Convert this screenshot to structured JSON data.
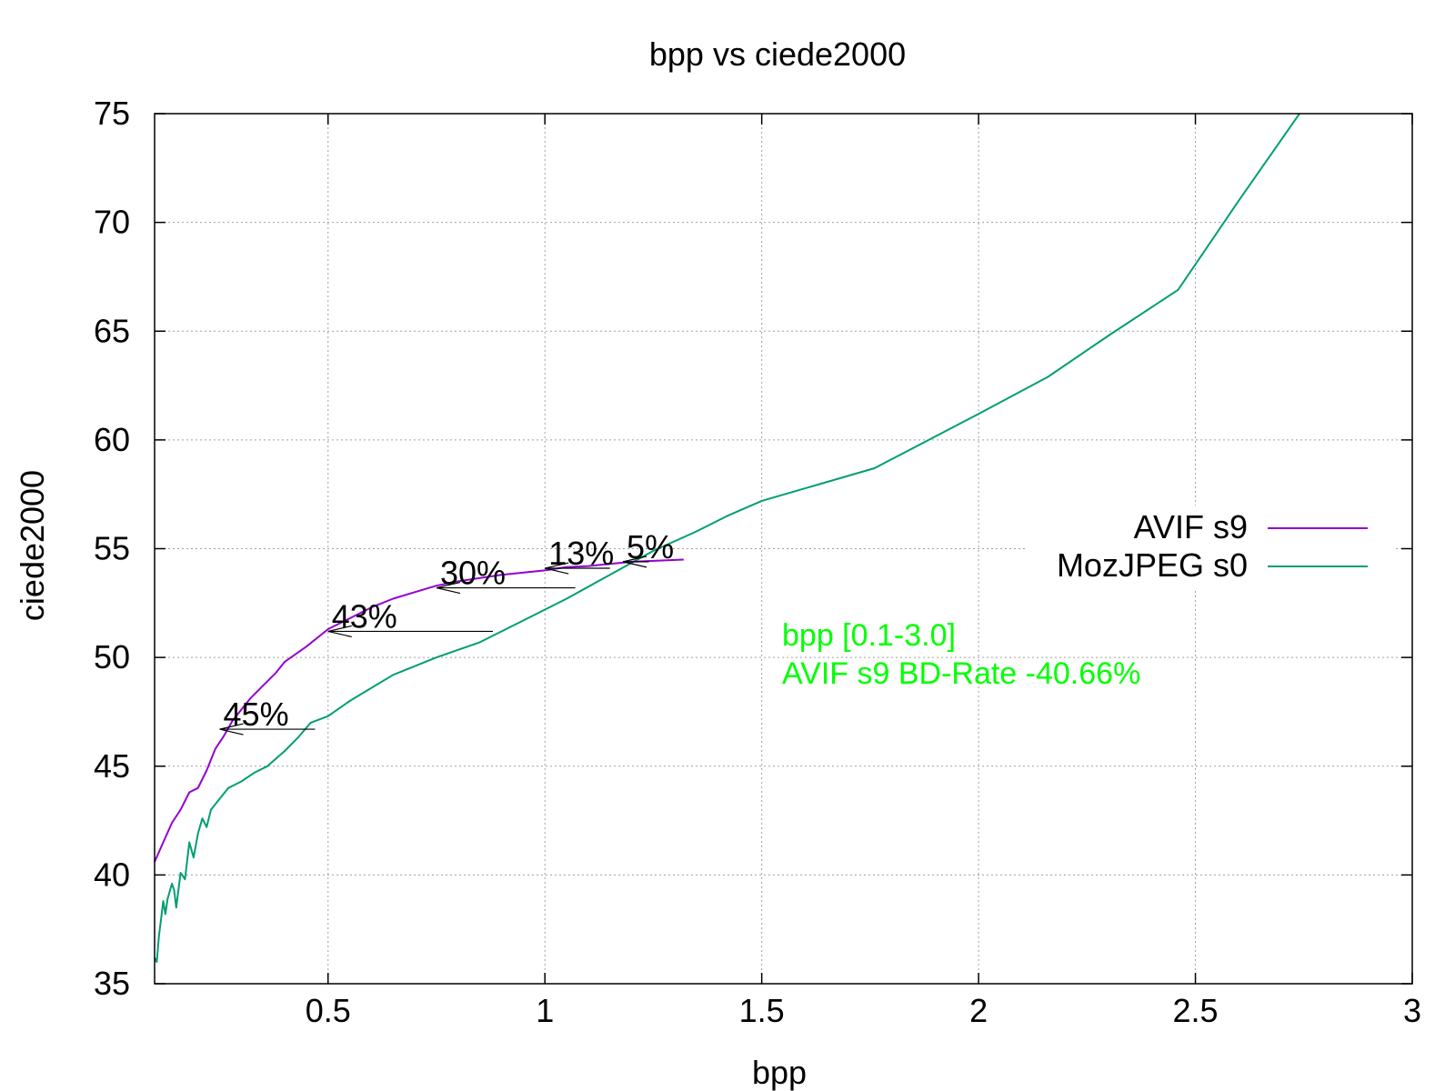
{
  "chart_data": {
    "type": "line",
    "title": "bpp vs ciede2000",
    "xlabel": "bpp",
    "ylabel": "ciede2000",
    "xlim": [
      0.1,
      3.0
    ],
    "ylim": [
      35,
      75
    ],
    "xticks": [
      0.5,
      1,
      1.5,
      2,
      2.5,
      3
    ],
    "xtick_labels": [
      "0.5",
      "1",
      "1.5",
      "2",
      "2.5",
      "3"
    ],
    "yticks": [
      35,
      40,
      45,
      50,
      55,
      60,
      65,
      70,
      75
    ],
    "ytick_labels": [
      "35",
      "40",
      "45",
      "50",
      "55",
      "60",
      "65",
      "70",
      "75"
    ],
    "grid": true,
    "legend_position": "right",
    "series": [
      {
        "name": "AVIF s9",
        "color": "#9400d3",
        "points": [
          [
            0.1,
            40.6
          ],
          [
            0.12,
            41.5
          ],
          [
            0.14,
            42.4
          ],
          [
            0.16,
            43.0
          ],
          [
            0.18,
            43.8
          ],
          [
            0.2,
            44.0
          ],
          [
            0.22,
            44.8
          ],
          [
            0.24,
            45.8
          ],
          [
            0.26,
            46.4
          ],
          [
            0.28,
            47.1
          ],
          [
            0.3,
            47.6
          ],
          [
            0.32,
            48.1
          ],
          [
            0.35,
            48.7
          ],
          [
            0.38,
            49.3
          ],
          [
            0.4,
            49.8
          ],
          [
            0.45,
            50.5
          ],
          [
            0.5,
            51.3
          ],
          [
            0.55,
            51.8
          ],
          [
            0.6,
            52.3
          ],
          [
            0.65,
            52.7
          ],
          [
            0.7,
            53.0
          ],
          [
            0.75,
            53.3
          ],
          [
            0.8,
            53.5
          ],
          [
            0.9,
            53.8
          ],
          [
            1.0,
            54.0
          ],
          [
            1.05,
            54.15
          ],
          [
            1.1,
            54.2
          ],
          [
            1.2,
            54.4
          ],
          [
            1.32,
            54.5
          ]
        ]
      },
      {
        "name": "MozJPEG s0",
        "color": "#009e73",
        "points": [
          [
            0.1,
            36.2
          ],
          [
            0.105,
            36.0
          ],
          [
            0.11,
            37.2
          ],
          [
            0.115,
            38.0
          ],
          [
            0.12,
            38.8
          ],
          [
            0.125,
            38.2
          ],
          [
            0.13,
            38.9
          ],
          [
            0.14,
            39.6
          ],
          [
            0.145,
            39.3
          ],
          [
            0.15,
            38.5
          ],
          [
            0.16,
            40.1
          ],
          [
            0.17,
            39.8
          ],
          [
            0.18,
            41.5
          ],
          [
            0.19,
            40.8
          ],
          [
            0.2,
            41.9
          ],
          [
            0.21,
            42.6
          ],
          [
            0.22,
            42.2
          ],
          [
            0.23,
            43.0
          ],
          [
            0.25,
            43.5
          ],
          [
            0.27,
            44.0
          ],
          [
            0.3,
            44.3
          ],
          [
            0.33,
            44.7
          ],
          [
            0.36,
            45.0
          ],
          [
            0.4,
            45.7
          ],
          [
            0.43,
            46.3
          ],
          [
            0.46,
            47.0
          ],
          [
            0.5,
            47.3
          ],
          [
            0.55,
            48.0
          ],
          [
            0.6,
            48.6
          ],
          [
            0.65,
            49.2
          ],
          [
            0.75,
            50.0
          ],
          [
            0.85,
            50.7
          ],
          [
            0.95,
            51.7
          ],
          [
            1.05,
            52.7
          ],
          [
            1.15,
            53.8
          ],
          [
            1.25,
            54.9
          ],
          [
            1.35,
            55.8
          ],
          [
            1.42,
            56.5
          ],
          [
            1.5,
            57.2
          ],
          [
            1.76,
            58.7
          ],
          [
            2.0,
            61.2
          ],
          [
            2.16,
            62.9
          ],
          [
            2.3,
            64.8
          ],
          [
            2.46,
            66.9
          ],
          [
            2.6,
            71.0
          ],
          [
            2.74,
            75.0
          ]
        ]
      }
    ],
    "annotations": [
      {
        "label": "45%",
        "from": [
          0.47,
          46.7
        ],
        "to": [
          0.25,
          46.7
        ]
      },
      {
        "label": "43%",
        "from": [
          0.88,
          51.2
        ],
        "to": [
          0.5,
          51.2
        ]
      },
      {
        "label": "30%",
        "from": [
          1.07,
          53.2
        ],
        "to": [
          0.75,
          53.2
        ]
      },
      {
        "label": "13%",
        "from": [
          1.15,
          54.1
        ],
        "to": [
          1.0,
          54.1
        ]
      },
      {
        "label": "5%",
        "from": [
          1.24,
          54.4
        ],
        "to": [
          1.18,
          54.4
        ]
      }
    ],
    "info_lines": [
      "bpp [0.1-3.0]",
      "AVIF s9 BD-Rate -40.66%"
    ],
    "info_color": "#00ff00"
  }
}
